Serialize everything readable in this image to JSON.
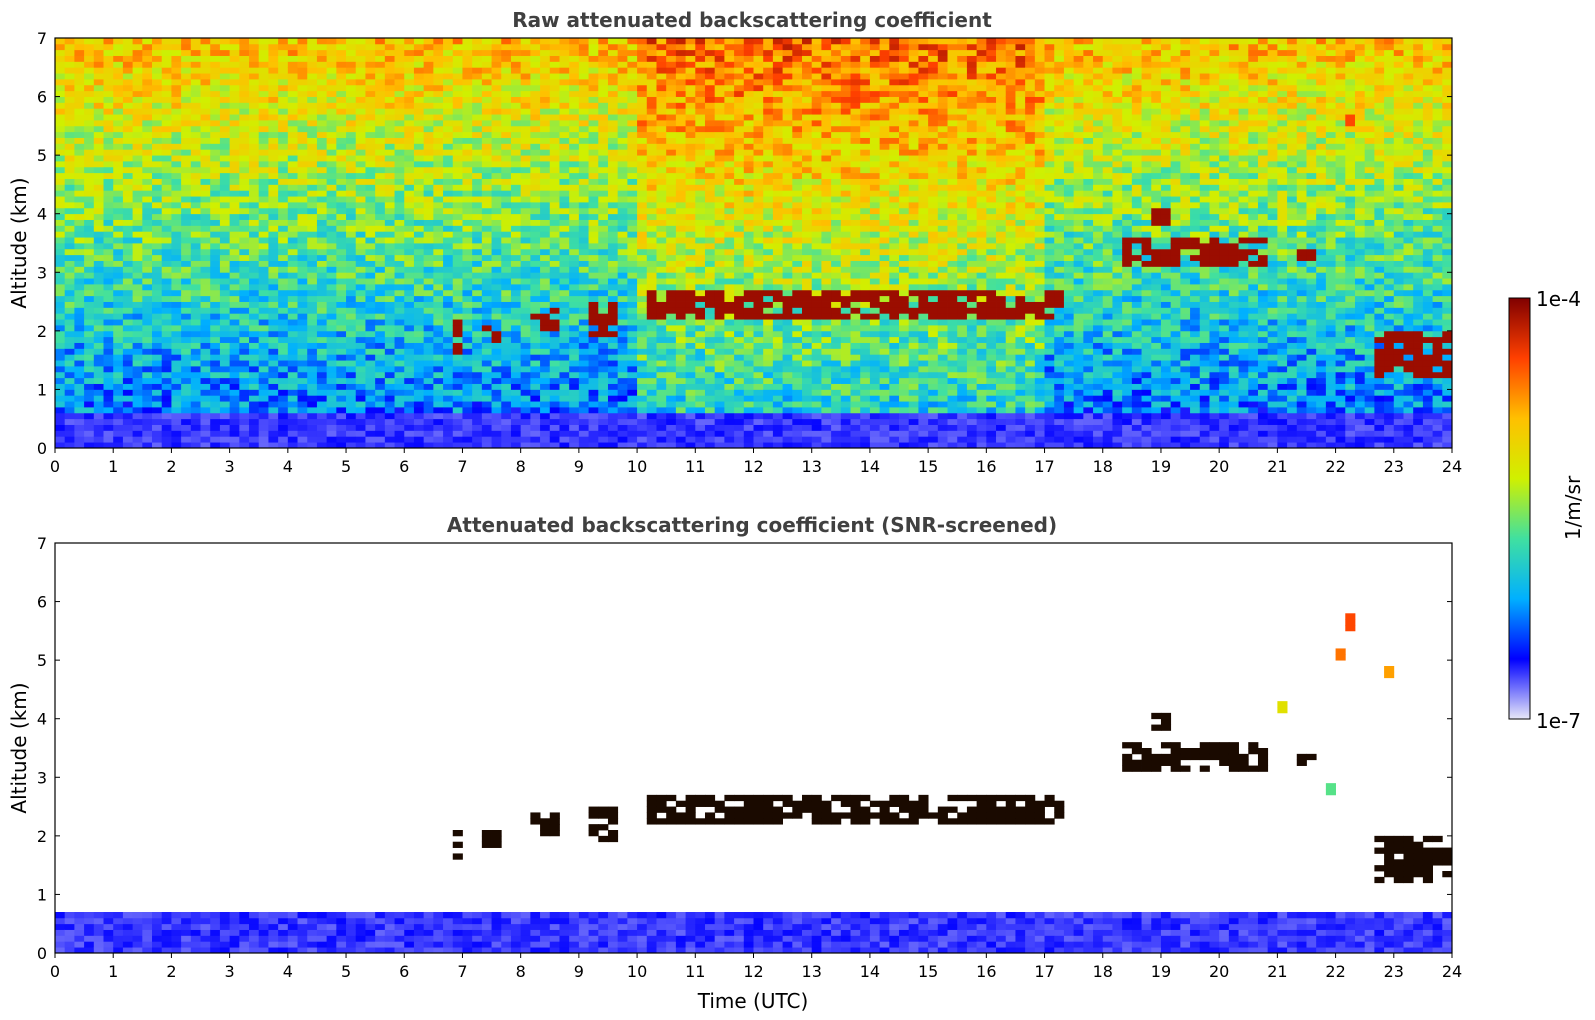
{
  "chart_data": [
    {
      "type": "heatmap",
      "title": "Raw attenuated backscattering coefficient",
      "xlabel": "",
      "ylabel": "Altitude (km)",
      "xlim": [
        0,
        24
      ],
      "ylim": [
        0,
        7
      ],
      "x_ticks": [
        "0",
        "1",
        "2",
        "3",
        "4",
        "5",
        "6",
        "7",
        "8",
        "9",
        "10",
        "11",
        "12",
        "13",
        "14",
        "15",
        "16",
        "17",
        "18",
        "19",
        "20",
        "21",
        "22",
        "23",
        "24"
      ],
      "y_ticks": [
        "0",
        "1",
        "2",
        "3",
        "4",
        "5",
        "6",
        "7"
      ],
      "features": {
        "boundary_layer": {
          "x": [
            0,
            24
          ],
          "y_top": 0.6,
          "level": 0.08
        },
        "cloud_layers": [
          {
            "x": [
              6.8,
              7.0
            ],
            "y": [
              1.6,
              2.2
            ]
          },
          {
            "x": [
              7.4,
              7.7
            ],
            "y": [
              1.8,
              2.1
            ]
          },
          {
            "x": [
              8.2,
              8.7
            ],
            "y": [
              2.0,
              2.4
            ]
          },
          {
            "x": [
              9.1,
              9.6
            ],
            "y": [
              1.9,
              2.5
            ]
          },
          {
            "x": [
              10.2,
              17.4
            ],
            "y": [
              2.2,
              2.7
            ]
          },
          {
            "x": [
              18.3,
              20.8
            ],
            "y": [
              3.1,
              3.6
            ]
          },
          {
            "x": [
              18.9,
              19.2
            ],
            "y": [
              3.8,
              4.1
            ]
          },
          {
            "x": [
              21.3,
              21.6
            ],
            "y": [
              3.2,
              3.4
            ]
          },
          {
            "x": [
              22.6,
              24.0
            ],
            "y": [
              1.2,
              2.0
            ]
          }
        ],
        "sparse_cirrus": [
          {
            "x": [
              21.0,
              21.2
            ],
            "y": [
              3.8,
              4.4
            ],
            "level": 0.62
          },
          {
            "x": [
              21.8,
              22.0
            ],
            "y": [
              2.6,
              3.0
            ],
            "level": 0.45
          },
          {
            "x": [
              22.1,
              22.3
            ],
            "y": [
              5.5,
              5.7
            ],
            "level": 0.85
          }
        ]
      }
    },
    {
      "type": "heatmap",
      "title": "Attenuated backscattering coefficient (SNR-screened)",
      "xlabel": "Time (UTC)",
      "ylabel": "Altitude (km)",
      "xlim": [
        0,
        24
      ],
      "ylim": [
        0,
        7
      ],
      "x_ticks": [
        "0",
        "1",
        "2",
        "3",
        "4",
        "5",
        "6",
        "7",
        "8",
        "9",
        "10",
        "11",
        "12",
        "13",
        "14",
        "15",
        "16",
        "17",
        "18",
        "19",
        "20",
        "21",
        "22",
        "23",
        "24"
      ],
      "y_ticks": [
        "0",
        "1",
        "2",
        "3",
        "4",
        "5",
        "6",
        "7"
      ],
      "features": {
        "boundary_layer": {
          "x": [
            0,
            24
          ],
          "y_top": 0.65,
          "level": 0.08
        },
        "cloud_layers": [
          {
            "x": [
              6.8,
              7.0
            ],
            "y": [
              1.6,
              2.2
            ]
          },
          {
            "x": [
              7.4,
              7.7
            ],
            "y": [
              1.8,
              2.1
            ]
          },
          {
            "x": [
              8.2,
              8.7
            ],
            "y": [
              2.0,
              2.4
            ]
          },
          {
            "x": [
              9.1,
              9.6
            ],
            "y": [
              1.9,
              2.5
            ]
          },
          {
            "x": [
              10.2,
              17.4
            ],
            "y": [
              2.2,
              2.7
            ]
          },
          {
            "x": [
              18.3,
              20.8
            ],
            "y": [
              3.1,
              3.6
            ]
          },
          {
            "x": [
              18.9,
              19.2
            ],
            "y": [
              3.8,
              4.1
            ]
          },
          {
            "x": [
              21.3,
              21.6
            ],
            "y": [
              3.2,
              3.4
            ]
          },
          {
            "x": [
              22.6,
              24.0
            ],
            "y": [
              1.2,
              2.0
            ]
          }
        ],
        "isolated_returns": [
          {
            "x": 21.05,
            "y": 4.2,
            "level": 0.62
          },
          {
            "x": 21.9,
            "y": 2.8,
            "level": 0.45
          },
          {
            "x": 22.25,
            "y": 5.65,
            "level": 0.85
          },
          {
            "x": 22.1,
            "y": 5.1,
            "level": 0.8
          },
          {
            "x": 22.9,
            "y": 4.8,
            "level": 0.75
          }
        ]
      }
    }
  ],
  "colorbar": {
    "label": "1/m/sr",
    "max_label": "1e-4",
    "min_label": "1e-7",
    "scale": "log",
    "range": [
      1e-07,
      0.0001
    ],
    "colormap": [
      "#e8e8f8",
      "#0000ff",
      "#00b0ff",
      "#40e0a0",
      "#d0f000",
      "#ffc000",
      "#ff4000",
      "#800000"
    ]
  }
}
